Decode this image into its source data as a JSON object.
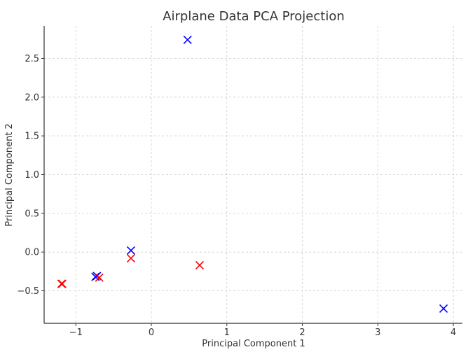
{
  "chart_data": {
    "type": "scatter",
    "title": "Airplane Data PCA Projection",
    "xlabel": "Principal Component 1",
    "ylabel": "Principal Component 2",
    "xlim": [
      -1.42,
      4.12
    ],
    "ylim": [
      -0.92,
      2.92
    ],
    "xticks": [
      -1,
      0,
      1,
      2,
      3,
      4
    ],
    "yticks": [
      -0.5,
      0.0,
      0.5,
      1.0,
      1.5,
      2.0,
      2.5
    ],
    "xtick_labels": [
      "−1",
      "0",
      "1",
      "2",
      "3",
      "4"
    ],
    "ytick_labels": [
      "−0.5",
      "0.0",
      "0.5",
      "1.0",
      "1.5",
      "2.0",
      "2.5"
    ],
    "grid": true,
    "marker": "x",
    "series": [
      {
        "color": "#0000ff",
        "points": [
          {
            "x": 0.48,
            "y": 2.74
          },
          {
            "x": -0.27,
            "y": 0.02
          },
          {
            "x": -0.72,
            "y": -0.31
          },
          {
            "x": -0.74,
            "y": -0.32
          },
          {
            "x": 3.87,
            "y": -0.73
          }
        ]
      },
      {
        "color": "#ff0000",
        "points": [
          {
            "x": -0.27,
            "y": -0.08
          },
          {
            "x": 0.64,
            "y": -0.17
          },
          {
            "x": -0.69,
            "y": -0.33
          },
          {
            "x": -1.18,
            "y": -0.41
          },
          {
            "x": -1.19,
            "y": -0.41
          }
        ]
      }
    ]
  }
}
